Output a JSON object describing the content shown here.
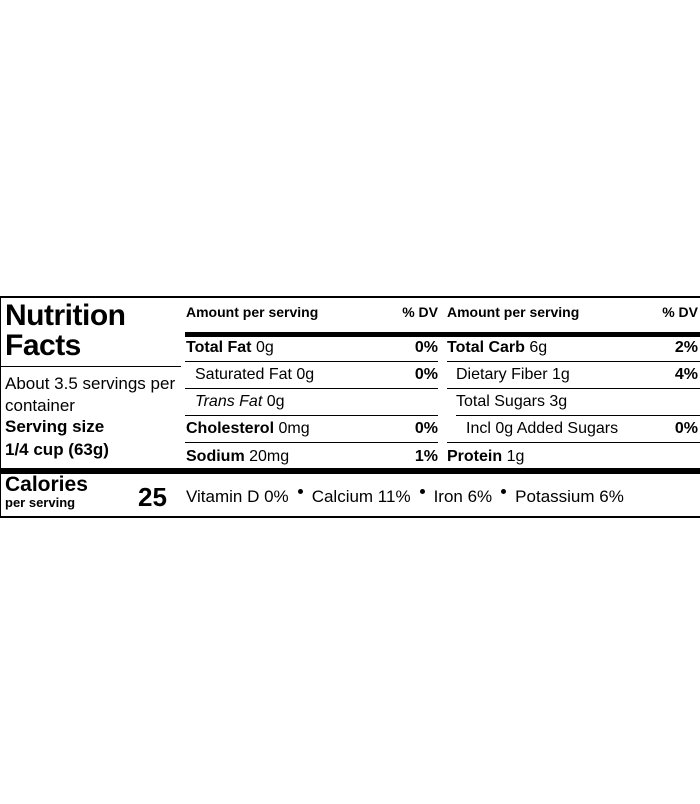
{
  "label": {
    "title": "Nutrition Facts",
    "servings": {
      "per_container": "About 3.5 servings per container",
      "size_label": "Serving size",
      "size": "1/4 cup (63g)"
    },
    "calories": {
      "label": "Calories",
      "sublabel": "per serving",
      "value": "25"
    },
    "columns": [
      {
        "header": {
          "amount": "Amount per serving",
          "dv": "% DV"
        },
        "rows": [
          {
            "name": "Total Fat",
            "amount": "0g",
            "dv": "0%"
          },
          {
            "name": "Saturated Fat",
            "amount": "0g",
            "dv": "0%"
          },
          {
            "name": "Trans Fat",
            "amount": "0g"
          },
          {
            "name": "Cholesterol",
            "amount": "0mg",
            "dv": "0%"
          },
          {
            "name": "Sodium",
            "amount": "20mg",
            "dv": "1%"
          }
        ]
      },
      {
        "header": {
          "amount": "Amount per serving",
          "dv": "% DV"
        },
        "rows": [
          {
            "name": "Total Carb",
            "amount": "6g",
            "dv": "2%"
          },
          {
            "name": "Dietary Fiber",
            "amount": "1g",
            "dv": "4%"
          },
          {
            "name": "Total Sugars",
            "amount": "3g"
          },
          {
            "name": "Incl 0g Added Sugars",
            "dv": "0%"
          },
          {
            "name": "Protein",
            "amount": "1g"
          }
        ]
      }
    ],
    "vitamins": [
      "Vitamin D 0%",
      "Calcium 11%",
      "Iron 6%",
      "Potassium 6%"
    ]
  }
}
